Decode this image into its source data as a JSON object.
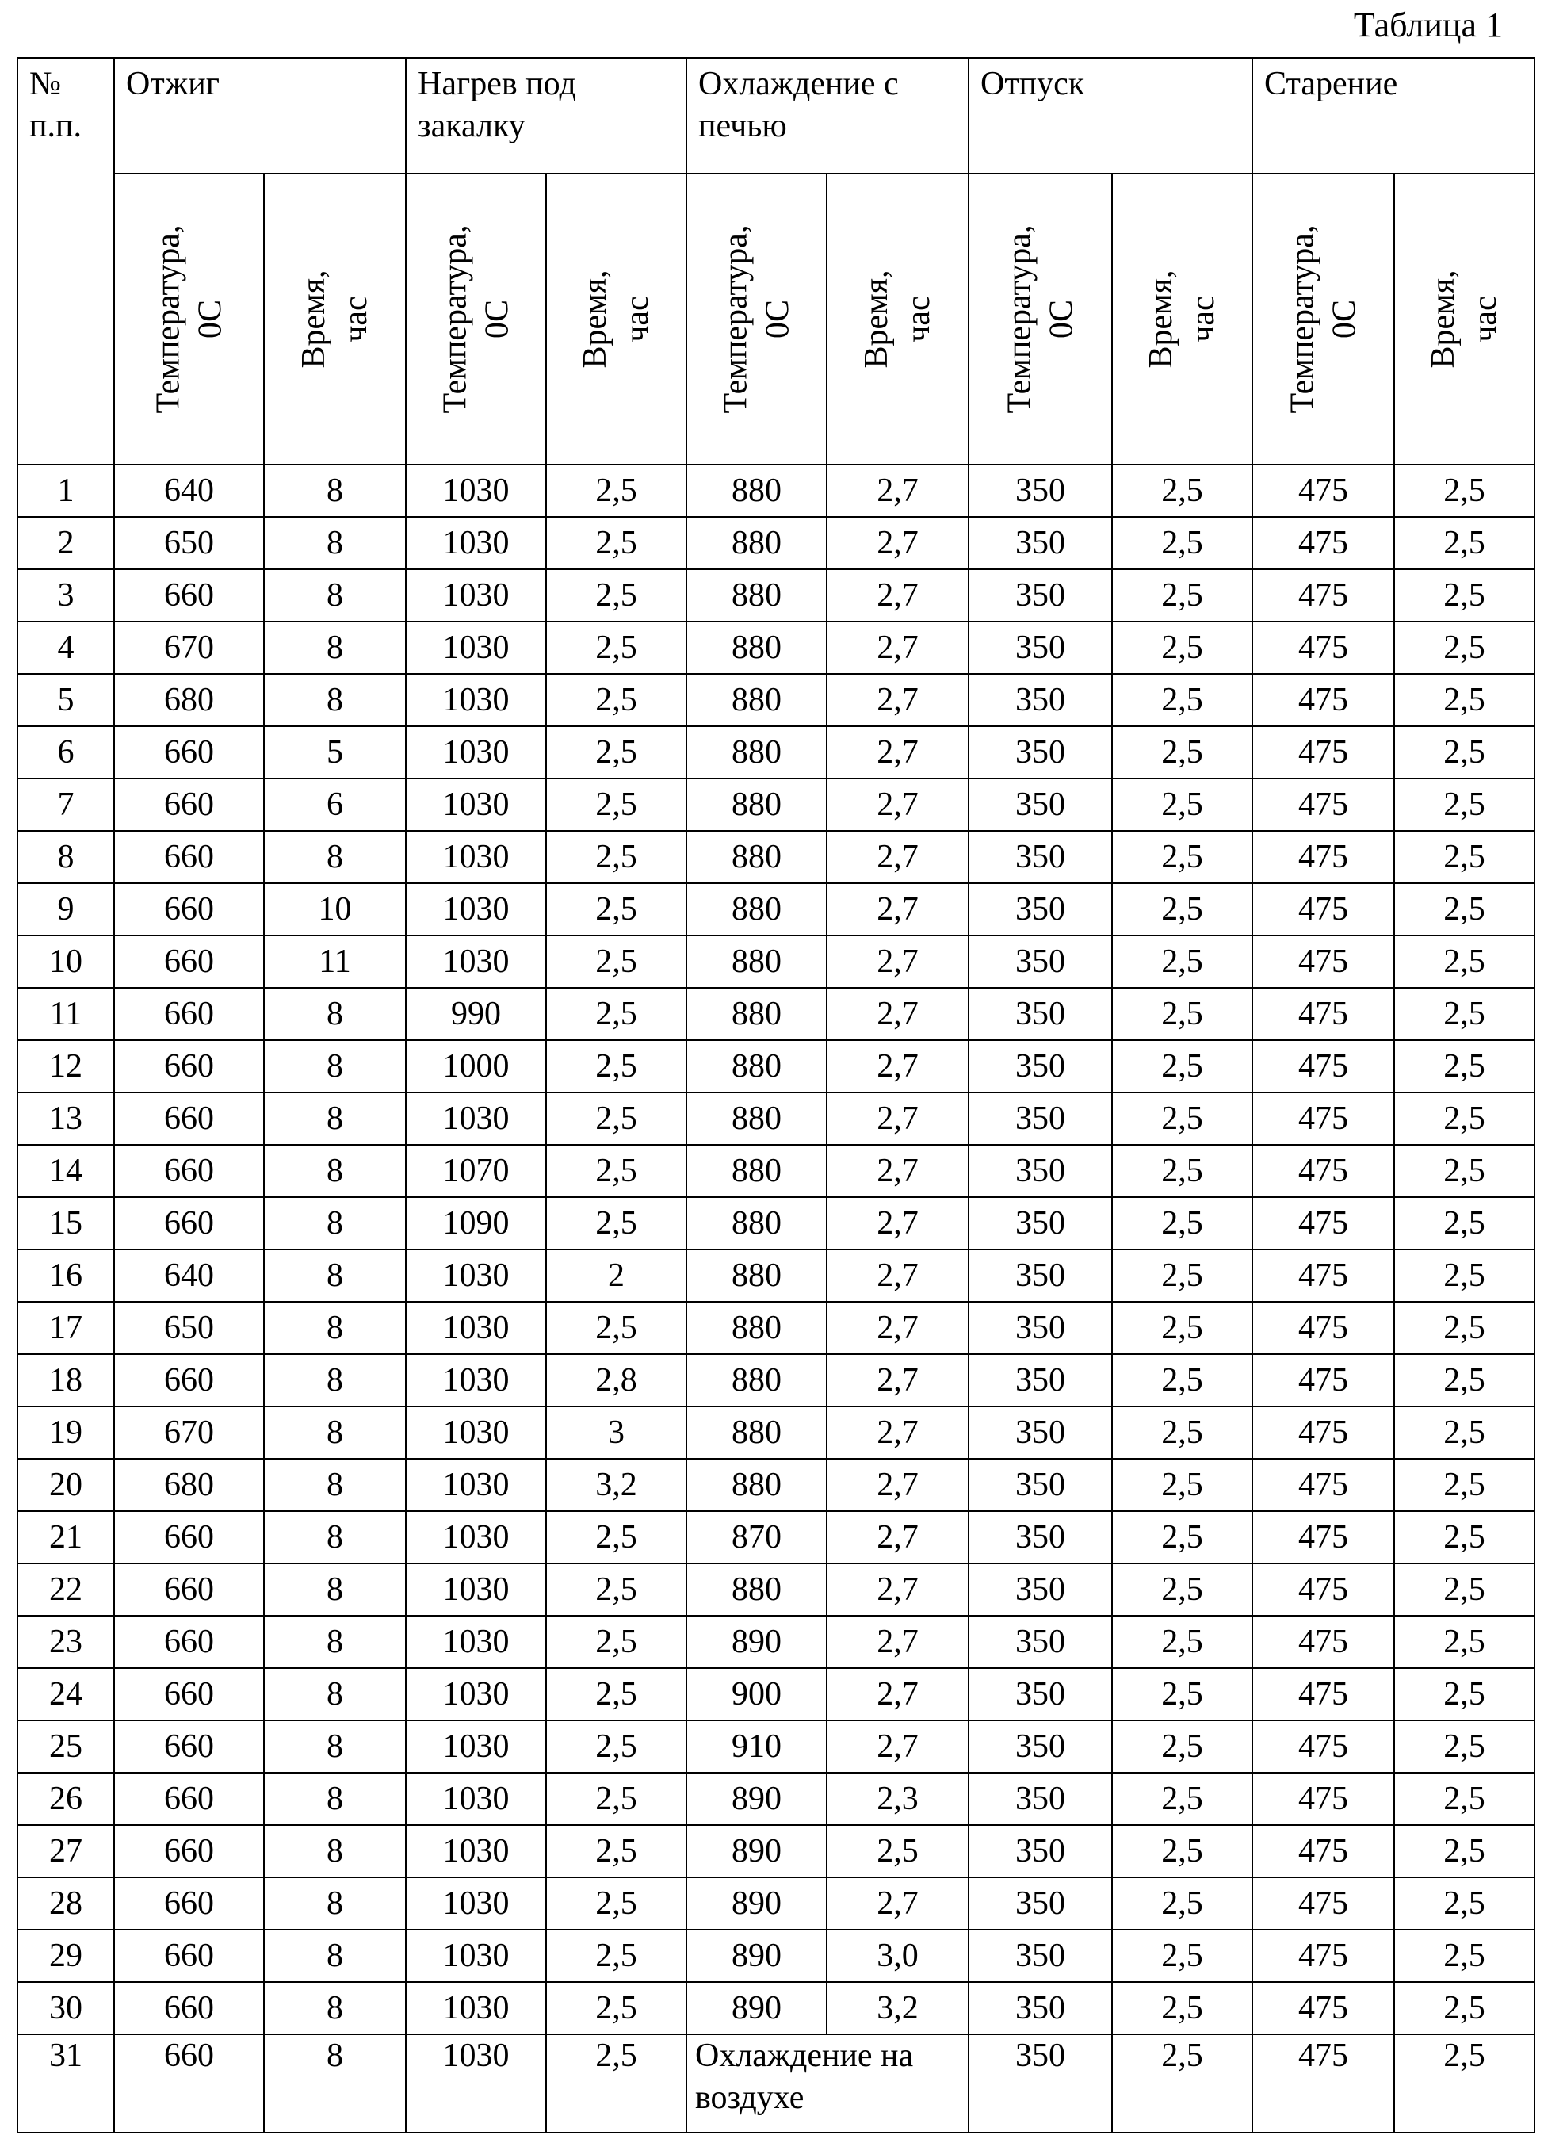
{
  "caption": "Таблица 1",
  "table": {
    "number_header": "№ п.п.",
    "groups": [
      "Отжиг",
      "Нагрев под закалку",
      "Охлаждение с печью",
      "Отпуск",
      "Старение"
    ],
    "subheaders": [
      [
        "Температура, 0С",
        "Время, час"
      ],
      [
        "Температура, 0С",
        "Время, час"
      ],
      [
        "Температура, 0С",
        "Время, час"
      ],
      [
        "Температура, 0С",
        "Время, час"
      ],
      [
        "Температура, 0С",
        "Время, час"
      ]
    ],
    "rows": [
      [
        "1",
        "640",
        "8",
        "1030",
        "2,5",
        "880",
        "2,7",
        "350",
        "2,5",
        "475",
        "2,5"
      ],
      [
        "2",
        "650",
        "8",
        "1030",
        "2,5",
        "880",
        "2,7",
        "350",
        "2,5",
        "475",
        "2,5"
      ],
      [
        "3",
        "660",
        "8",
        "1030",
        "2,5",
        "880",
        "2,7",
        "350",
        "2,5",
        "475",
        "2,5"
      ],
      [
        "4",
        "670",
        "8",
        "1030",
        "2,5",
        "880",
        "2,7",
        "350",
        "2,5",
        "475",
        "2,5"
      ],
      [
        "5",
        "680",
        "8",
        "1030",
        "2,5",
        "880",
        "2,7",
        "350",
        "2,5",
        "475",
        "2,5"
      ],
      [
        "6",
        "660",
        "5",
        "1030",
        "2,5",
        "880",
        "2,7",
        "350",
        "2,5",
        "475",
        "2,5"
      ],
      [
        "7",
        "660",
        "6",
        "1030",
        "2,5",
        "880",
        "2,7",
        "350",
        "2,5",
        "475",
        "2,5"
      ],
      [
        "8",
        "660",
        "8",
        "1030",
        "2,5",
        "880",
        "2,7",
        "350",
        "2,5",
        "475",
        "2,5"
      ],
      [
        "9",
        "660",
        "10",
        "1030",
        "2,5",
        "880",
        "2,7",
        "350",
        "2,5",
        "475",
        "2,5"
      ],
      [
        "10",
        "660",
        "11",
        "1030",
        "2,5",
        "880",
        "2,7",
        "350",
        "2,5",
        "475",
        "2,5"
      ],
      [
        "11",
        "660",
        "8",
        "990",
        "2,5",
        "880",
        "2,7",
        "350",
        "2,5",
        "475",
        "2,5"
      ],
      [
        "12",
        "660",
        "8",
        "1000",
        "2,5",
        "880",
        "2,7",
        "350",
        "2,5",
        "475",
        "2,5"
      ],
      [
        "13",
        "660",
        "8",
        "1030",
        "2,5",
        "880",
        "2,7",
        "350",
        "2,5",
        "475",
        "2,5"
      ],
      [
        "14",
        "660",
        "8",
        "1070",
        "2,5",
        "880",
        "2,7",
        "350",
        "2,5",
        "475",
        "2,5"
      ],
      [
        "15",
        "660",
        "8",
        "1090",
        "2,5",
        "880",
        "2,7",
        "350",
        "2,5",
        "475",
        "2,5"
      ],
      [
        "16",
        "640",
        "8",
        "1030",
        "2",
        "880",
        "2,7",
        "350",
        "2,5",
        "475",
        "2,5"
      ],
      [
        "17",
        "650",
        "8",
        "1030",
        "2,5",
        "880",
        "2,7",
        "350",
        "2,5",
        "475",
        "2,5"
      ],
      [
        "18",
        "660",
        "8",
        "1030",
        "2,8",
        "880",
        "2,7",
        "350",
        "2,5",
        "475",
        "2,5"
      ],
      [
        "19",
        "670",
        "8",
        "1030",
        "3",
        "880",
        "2,7",
        "350",
        "2,5",
        "475",
        "2,5"
      ],
      [
        "20",
        "680",
        "8",
        "1030",
        "3,2",
        "880",
        "2,7",
        "350",
        "2,5",
        "475",
        "2,5"
      ],
      [
        "21",
        "660",
        "8",
        "1030",
        "2,5",
        "870",
        "2,7",
        "350",
        "2,5",
        "475",
        "2,5"
      ],
      [
        "22",
        "660",
        "8",
        "1030",
        "2,5",
        "880",
        "2,7",
        "350",
        "2,5",
        "475",
        "2,5"
      ],
      [
        "23",
        "660",
        "8",
        "1030",
        "2,5",
        "890",
        "2,7",
        "350",
        "2,5",
        "475",
        "2,5"
      ],
      [
        "24",
        "660",
        "8",
        "1030",
        "2,5",
        "900",
        "2,7",
        "350",
        "2,5",
        "475",
        "2,5"
      ],
      [
        "25",
        "660",
        "8",
        "1030",
        "2,5",
        "910",
        "2,7",
        "350",
        "2,5",
        "475",
        "2,5"
      ],
      [
        "26",
        "660",
        "8",
        "1030",
        "2,5",
        "890",
        "2,3",
        "350",
        "2,5",
        "475",
        "2,5"
      ],
      [
        "27",
        "660",
        "8",
        "1030",
        "2,5",
        "890",
        "2,5",
        "350",
        "2,5",
        "475",
        "2,5"
      ],
      [
        "28",
        "660",
        "8",
        "1030",
        "2,5",
        "890",
        "2,7",
        "350",
        "2,5",
        "475",
        "2,5"
      ],
      [
        "29",
        "660",
        "8",
        "1030",
        "2,5",
        "890",
        "3,0",
        "350",
        "2,5",
        "475",
        "2,5"
      ],
      [
        "30",
        "660",
        "8",
        "1030",
        "2,5",
        "890",
        "3,2",
        "350",
        "2,5",
        "475",
        "2,5"
      ],
      [
        "31",
        "660",
        "8",
        "1030",
        "2,5",
        "Охлаждение на воздухе",
        "350",
        "2,5",
        "475",
        "2,5"
      ]
    ]
  }
}
